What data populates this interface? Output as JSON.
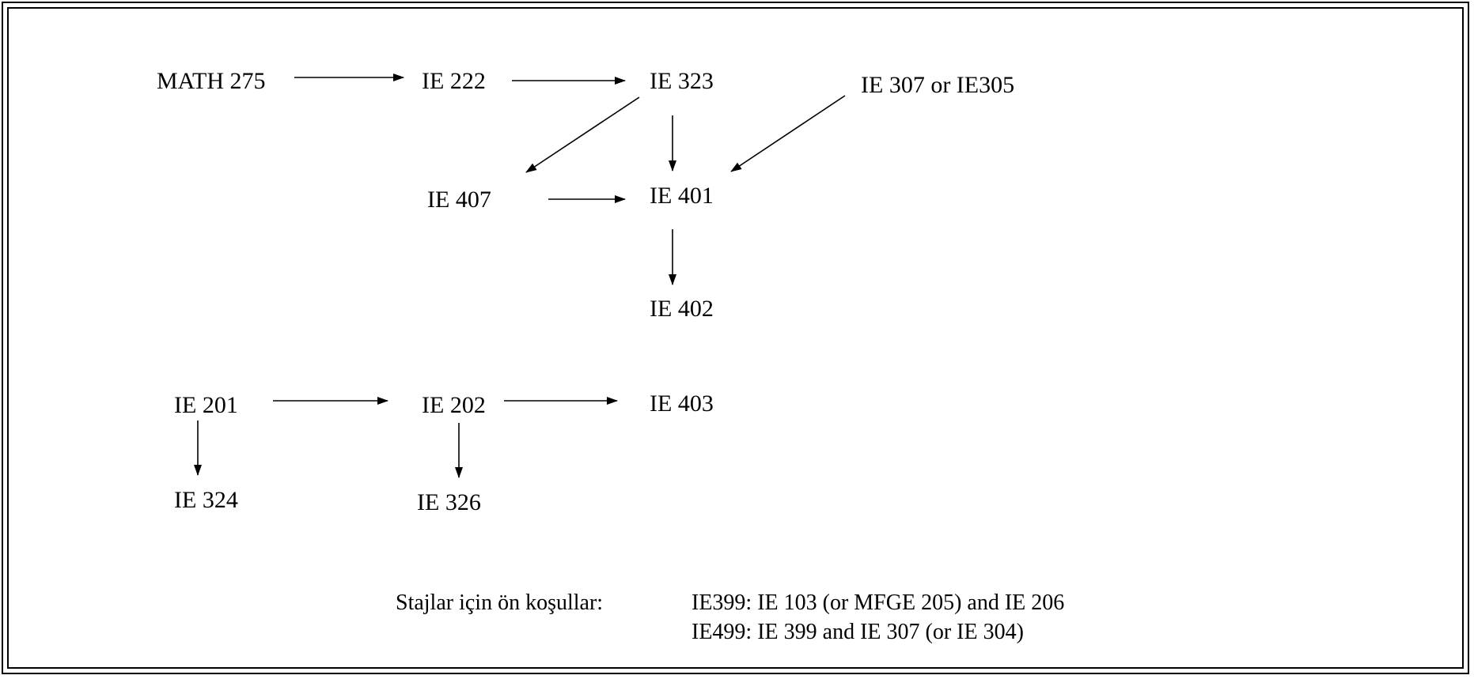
{
  "courses": {
    "math275": "MATH 275",
    "ie222": "IE 222",
    "ie323": "IE 323",
    "ie307_or_305": "IE 307 or IE305",
    "ie407": "IE 407",
    "ie401": "IE 401",
    "ie402": "IE 402",
    "ie201": "IE 201",
    "ie202": "IE 202",
    "ie403": "IE 403",
    "ie324": "IE 324",
    "ie326": "IE 326"
  },
  "edges": [
    {
      "from": "MATH 275",
      "to": "IE 222"
    },
    {
      "from": "IE 222",
      "to": "IE 323"
    },
    {
      "from": "IE 323",
      "to": "IE 407"
    },
    {
      "from": "IE 323",
      "to": "IE 401"
    },
    {
      "from": "IE 307 or IE305",
      "to": "IE 401"
    },
    {
      "from": "IE 407",
      "to": "IE 401"
    },
    {
      "from": "IE 401",
      "to": "IE 402"
    },
    {
      "from": "IE 201",
      "to": "IE 202"
    },
    {
      "from": "IE 202",
      "to": "IE 403"
    },
    {
      "from": "IE 201",
      "to": "IE 324"
    },
    {
      "from": "IE 202",
      "to": "IE 326"
    }
  ],
  "internships": {
    "label": "Stajlar için ön koşullar:",
    "ie399": "IE399: IE 103 (or MFGE 205) and IE 206",
    "ie499": "IE499: IE 399 and IE 307 (or IE 304)"
  }
}
